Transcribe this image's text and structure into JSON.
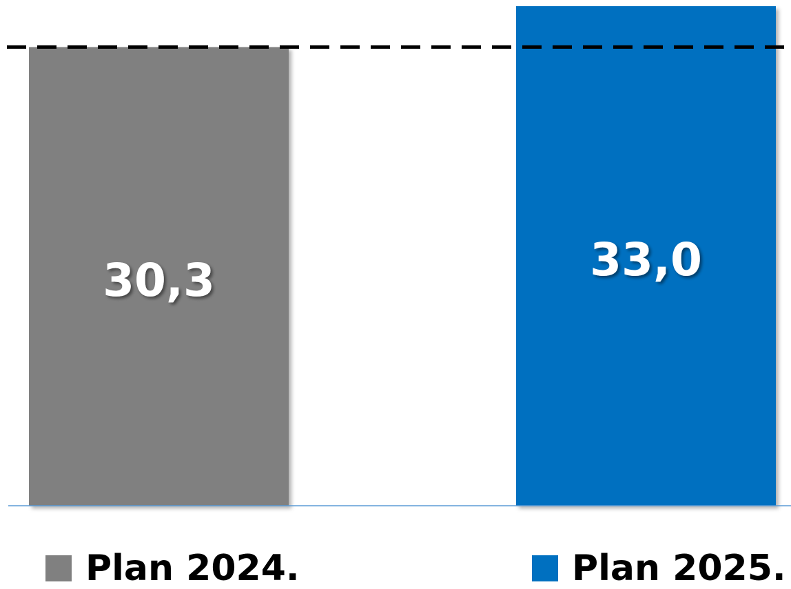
{
  "chart_data": {
    "type": "bar",
    "categories": [
      "Plan 2024.",
      "Plan 2025."
    ],
    "values": [
      30.3,
      33.0
    ],
    "value_labels": [
      "30,3",
      "33,0"
    ],
    "colors": [
      "#808080",
      "#0070C0"
    ],
    "reference_line": {
      "value": 30.3,
      "style": "dashed",
      "color": "#000000"
    },
    "legend": {
      "position": "bottom",
      "entries": [
        "Plan 2024.",
        "Plan 2025."
      ]
    },
    "title": "",
    "xlabel": "",
    "ylabel": "",
    "ylim": [
      0,
      33.0
    ],
    "grid": false,
    "baseline_color": "#5B9BD5"
  }
}
